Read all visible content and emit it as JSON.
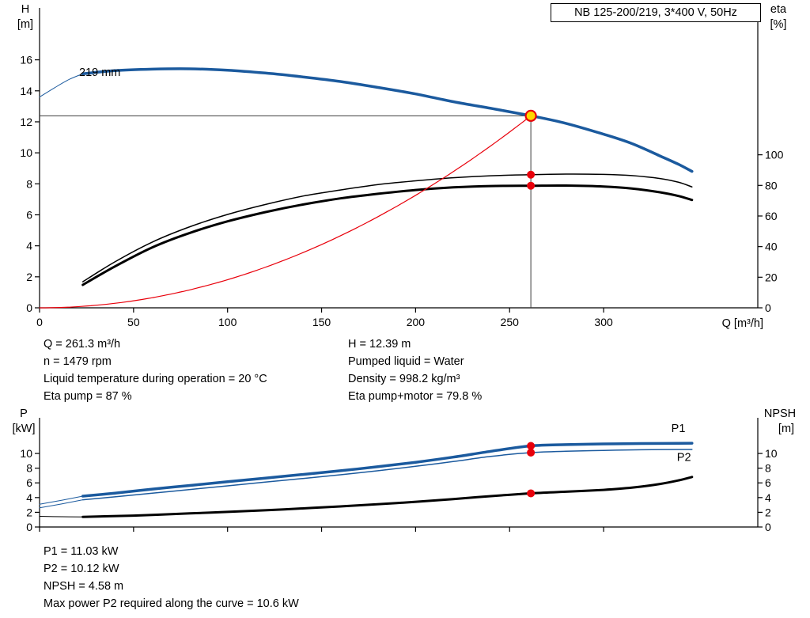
{
  "title_box": {
    "label": "NB 125-200/219, 3*400 V, 50Hz"
  },
  "colors": {
    "curve_blue": "#1b5a9e",
    "curve_black": "#000000",
    "curve_red": "#e8000b",
    "duty_yellow": "#ffd800",
    "duty_red": "#e8000b",
    "crosshair": "#3c3c3c",
    "axis": "#000000"
  },
  "info_top": {
    "left": [
      "Q = 261.3 m³/h",
      "n = 1479 rpm",
      "Liquid temperature during operation = 20 °C",
      "Eta pump = 87 %"
    ],
    "right": [
      "H = 12.39 m",
      "Pumped liquid = Water",
      "Density = 998.2 kg/m³",
      "Eta pump+motor = 79.8 %"
    ]
  },
  "info_bottom": [
    "P1 = 11.03 kW",
    "P2 = 10.12 kW",
    "NPSH = 4.58 m",
    "Max power P2 required along the curve = 10.6 kW"
  ],
  "chart_data": [
    {
      "type": "line",
      "title": "NB 125-200/219, 3*400 V, 50Hz",
      "x_axis": {
        "label": "Q [m³/h]",
        "min": 0,
        "max": 382,
        "ticks": [
          0,
          50,
          100,
          150,
          200,
          250,
          300
        ]
      },
      "y_axis_left": {
        "label": "H",
        "unit": "[m]",
        "min": 0,
        "max": 19.35,
        "ticks": [
          0,
          2,
          4,
          6,
          8,
          10,
          12,
          14,
          16
        ]
      },
      "y_axis_right": {
        "label": "eta",
        "unit": "[%]",
        "min": 0,
        "max": 196,
        "ticks": [
          0,
          20,
          40,
          60,
          80,
          100
        ]
      },
      "impeller_label": {
        "text": "219 mm",
        "Q": 21,
        "H": 14.95
      },
      "duty_point": {
        "Q": 261.3,
        "H": 12.39,
        "eta_pump": 87,
        "eta_pump_motor": 79.8
      },
      "crosshair": {
        "Q": 261.3,
        "H": 12.39
      },
      "series": [
        {
          "name": "head-curve-leadin",
          "axis": "left",
          "style": "lead-blue",
          "points": [
            [
              0,
              13.6
            ],
            [
              8,
              14.2
            ],
            [
              16,
              14.75
            ],
            [
              23,
              15.1
            ]
          ]
        },
        {
          "name": "head-curve-219mm",
          "axis": "left",
          "style": "thick-blue",
          "points": [
            [
              23,
              15.1
            ],
            [
              40,
              15.3
            ],
            [
              60,
              15.4
            ],
            [
              80,
              15.42
            ],
            [
              100,
              15.33
            ],
            [
              120,
              15.15
            ],
            [
              140,
              14.9
            ],
            [
              160,
              14.6
            ],
            [
              180,
              14.22
            ],
            [
              200,
              13.8
            ],
            [
              220,
              13.3
            ],
            [
              240,
              12.87
            ],
            [
              261.3,
              12.39
            ],
            [
              280,
              11.9
            ],
            [
              300,
              11.2
            ],
            [
              315,
              10.6
            ],
            [
              330,
              9.8
            ],
            [
              340,
              9.25
            ],
            [
              347,
              8.8
            ]
          ]
        },
        {
          "name": "eta-pump-curve",
          "axis": "right",
          "style": "thin-black",
          "points": [
            [
              23,
              17
            ],
            [
              40,
              30
            ],
            [
              60,
              43
            ],
            [
              80,
              53
            ],
            [
              100,
              61
            ],
            [
              120,
              67.5
            ],
            [
              140,
              73
            ],
            [
              160,
              77
            ],
            [
              180,
              80.5
            ],
            [
              200,
              83
            ],
            [
              220,
              85
            ],
            [
              240,
              86.3
            ],
            [
              261.3,
              87
            ],
            [
              280,
              87.4
            ],
            [
              300,
              87.2
            ],
            [
              315,
              86.4
            ],
            [
              330,
              84.5
            ],
            [
              340,
              82
            ],
            [
              347,
              79
            ]
          ]
        },
        {
          "name": "eta-pump-motor-curve",
          "axis": "right",
          "style": "thick-black",
          "points": [
            [
              23,
              15
            ],
            [
              40,
              27
            ],
            [
              60,
              39.5
            ],
            [
              80,
              49
            ],
            [
              100,
              56.5
            ],
            [
              120,
              62.5
            ],
            [
              140,
              67.5
            ],
            [
              160,
              71.5
            ],
            [
              180,
              74.5
            ],
            [
              200,
              77
            ],
            [
              220,
              78.7
            ],
            [
              240,
              79.6
            ],
            [
              261.3,
              79.8
            ],
            [
              280,
              79.9
            ],
            [
              300,
              79.3
            ],
            [
              315,
              78
            ],
            [
              330,
              75.5
            ],
            [
              340,
              73
            ],
            [
              347,
              70.5
            ]
          ]
        },
        {
          "name": "system-curve",
          "axis": "left",
          "style": "thin-red",
          "quadratic_through": {
            "Q": 261.3,
            "H": 12.39
          }
        }
      ],
      "markers": [
        {
          "name": "duty-point-marker",
          "Q": 261.3,
          "value": 12.39,
          "axis": "left",
          "kind": "yellow-ring"
        },
        {
          "name": "eta-pump-marker",
          "Q": 261.3,
          "value": 87,
          "axis": "right",
          "kind": "red-dot"
        },
        {
          "name": "eta-pump-motor-marker",
          "Q": 261.3,
          "value": 79.8,
          "axis": "right",
          "kind": "red-dot"
        }
      ]
    },
    {
      "type": "line",
      "title": "Power and NPSH curves",
      "x_axis": {
        "label": "",
        "min": 0,
        "max": 382,
        "ticks": [
          0,
          50,
          100,
          150,
          200,
          250,
          300
        ],
        "tick_labels": false
      },
      "y_axis_left": {
        "label": "P",
        "unit": "[kW]",
        "min": 0,
        "max": 14.85,
        "ticks": [
          0,
          2,
          4,
          6,
          8,
          10
        ]
      },
      "y_axis_right": {
        "label": "NPSH",
        "unit": "[m]",
        "min": 0,
        "max": 14.85,
        "ticks": [
          0,
          2,
          4,
          6,
          8,
          10
        ]
      },
      "series": [
        {
          "name": "p1-leadin",
          "axis": "left",
          "style": "lead-blue",
          "points": [
            [
              0,
              3.1
            ],
            [
              12,
              3.65
            ],
            [
              23,
              4.2
            ]
          ]
        },
        {
          "name": "p1-curve",
          "axis": "left",
          "style": "thick-blue",
          "points": [
            [
              23,
              4.2
            ],
            [
              40,
              4.6
            ],
            [
              60,
              5.15
            ],
            [
              80,
              5.65
            ],
            [
              100,
              6.15
            ],
            [
              120,
              6.65
            ],
            [
              140,
              7.15
            ],
            [
              160,
              7.65
            ],
            [
              180,
              8.2
            ],
            [
              200,
              8.8
            ],
            [
              220,
              9.5
            ],
            [
              240,
              10.3
            ],
            [
              261.3,
              11.03
            ],
            [
              280,
              11.2
            ],
            [
              300,
              11.3
            ],
            [
              320,
              11.35
            ],
            [
              347,
              11.4
            ]
          ]
        },
        {
          "name": "p2-leadin",
          "axis": "left",
          "style": "lead-blue",
          "points": [
            [
              0,
              2.6
            ],
            [
              12,
              3.15
            ],
            [
              23,
              3.7
            ]
          ]
        },
        {
          "name": "p2-curve",
          "axis": "left",
          "style": "thin-blue",
          "points": [
            [
              23,
              3.7
            ],
            [
              40,
              4.1
            ],
            [
              60,
              4.6
            ],
            [
              80,
              5.1
            ],
            [
              100,
              5.6
            ],
            [
              120,
              6.1
            ],
            [
              140,
              6.6
            ],
            [
              160,
              7.1
            ],
            [
              180,
              7.65
            ],
            [
              200,
              8.25
            ],
            [
              220,
              8.9
            ],
            [
              240,
              9.6
            ],
            [
              261.3,
              10.12
            ],
            [
              280,
              10.3
            ],
            [
              300,
              10.42
            ],
            [
              320,
              10.5
            ],
            [
              347,
              10.55
            ]
          ]
        },
        {
          "name": "npsh-leadin",
          "axis": "left",
          "style": "lead-black",
          "points": [
            [
              0,
              1.45
            ],
            [
              12,
              1.4
            ],
            [
              23,
              1.38
            ]
          ]
        },
        {
          "name": "npsh-curve",
          "axis": "left",
          "style": "thick-black",
          "points": [
            [
              23,
              1.38
            ],
            [
              50,
              1.55
            ],
            [
              80,
              1.85
            ],
            [
              100,
              2.05
            ],
            [
              130,
              2.4
            ],
            [
              160,
              2.8
            ],
            [
              190,
              3.25
            ],
            [
              220,
              3.8
            ],
            [
              240,
              4.2
            ],
            [
              261.3,
              4.58
            ],
            [
              280,
              4.8
            ],
            [
              300,
              5.05
            ],
            [
              315,
              5.35
            ],
            [
              330,
              5.85
            ],
            [
              340,
              6.35
            ],
            [
              347,
              6.8
            ]
          ]
        }
      ],
      "curve_labels": [
        {
          "text": "P1",
          "Q": 336,
          "value": 12.9
        },
        {
          "text": "P2",
          "Q": 339,
          "value": 9.0
        }
      ],
      "markers": [
        {
          "name": "p1-marker",
          "Q": 261.3,
          "value": 11.03,
          "axis": "left",
          "kind": "red-dot"
        },
        {
          "name": "p2-marker",
          "Q": 261.3,
          "value": 10.12,
          "axis": "left",
          "kind": "red-dot"
        },
        {
          "name": "npsh-marker",
          "Q": 261.3,
          "value": 4.58,
          "axis": "left",
          "kind": "red-dot"
        }
      ]
    }
  ]
}
